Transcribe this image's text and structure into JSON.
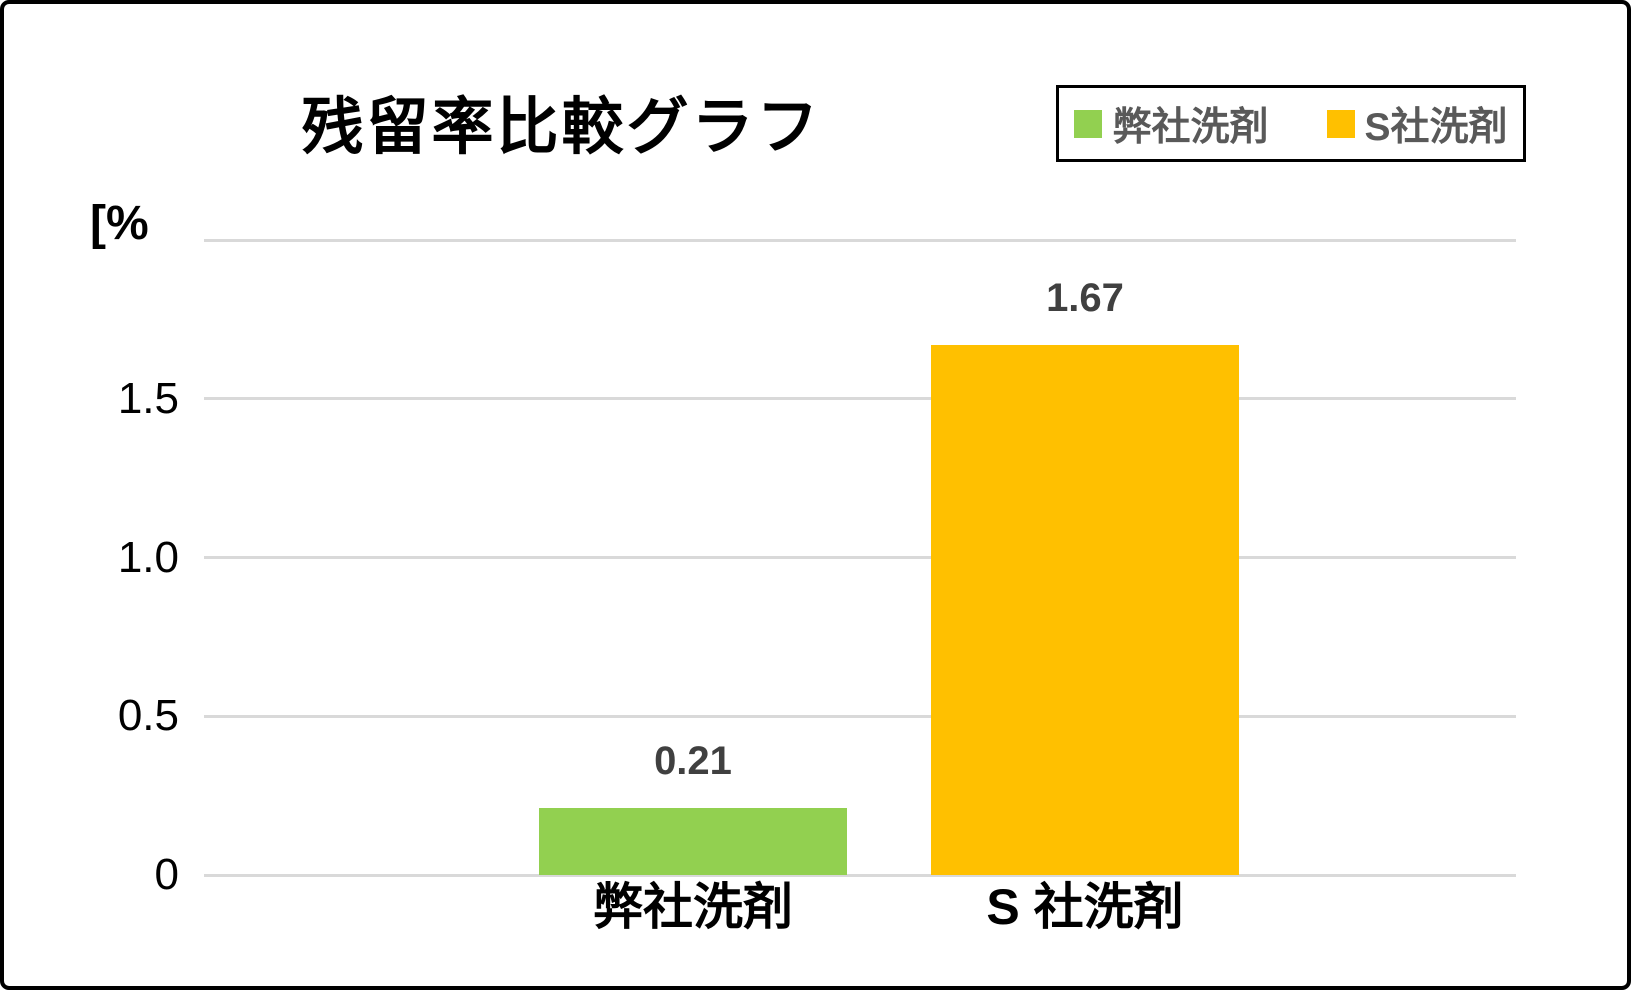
{
  "title": "残留率比較グラフ",
  "axis_unit_label": "[%",
  "legend": {
    "items": [
      {
        "label": "弊社洗剤",
        "color": "#92D050"
      },
      {
        "label": "S社洗剤",
        "color": "#FFC000"
      }
    ]
  },
  "chart_data": {
    "type": "bar",
    "title": "残留率比較グラフ",
    "xlabel": "",
    "ylabel": "[%",
    "categories": [
      "弊社洗剤",
      "S 社洗剤"
    ],
    "values": [
      0.21,
      1.67
    ],
    "data_labels": [
      "0.21",
      "1.67"
    ],
    "bar_colors": [
      "#92D050",
      "#FFC000"
    ],
    "series_names": [
      "弊社洗剤",
      "S社洗剤"
    ],
    "ylim": [
      0,
      2.0
    ],
    "yticks": [
      0,
      0.5,
      1.0,
      1.5,
      2.0
    ],
    "ytick_labels": [
      "0",
      "0.5",
      "1.0",
      "1.5",
      ""
    ],
    "grid": true,
    "legend_position": "top-right"
  },
  "colors": {
    "grid": "#D9D9D9",
    "data_label_text": "#404040",
    "legend_text": "#595959",
    "axis_text": "#000000",
    "border": "#000000",
    "background": "#FFFFFF"
  }
}
